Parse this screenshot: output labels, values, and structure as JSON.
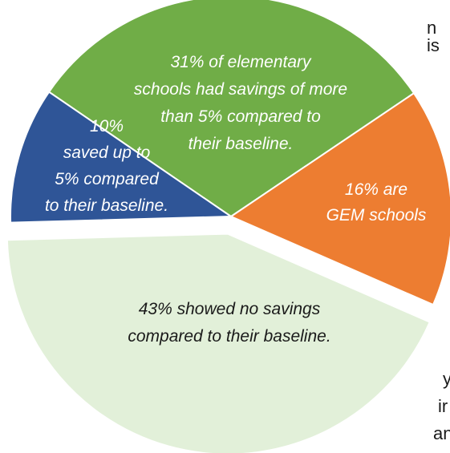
{
  "background_text": {
    "fragment_top": "n is",
    "fragment_mid": "y",
    "fragment_mid2": "ir",
    "fragment_bottom": "an"
  },
  "chart_data": {
    "type": "pie",
    "title": "",
    "slices": [
      {
        "name": "more_than_5",
        "value": 31,
        "color": "#70ad47",
        "text_color": "#ffffff",
        "label_lines": [
          "31% of elementary",
          "schools had savings of more",
          "than 5% compared to",
          "their baseline."
        ]
      },
      {
        "name": "gem",
        "value": 16,
        "color": "#ed7d31",
        "text_color": "#ffffff",
        "label_lines": [
          "16% are",
          "GEM schools"
        ]
      },
      {
        "name": "no_savings",
        "value": 43,
        "color": "#e2f0d9",
        "text_color": "#1a1a1a",
        "exploded": true,
        "label_lines": [
          "43% showed no savings",
          "compared to their baseline."
        ]
      },
      {
        "name": "up_to_5",
        "value": 10,
        "color": "#2f5597",
        "text_color": "#ffffff",
        "label_lines": [
          "10%",
          "saved up to",
          "5% compared",
          "to their baseline."
        ]
      }
    ]
  }
}
